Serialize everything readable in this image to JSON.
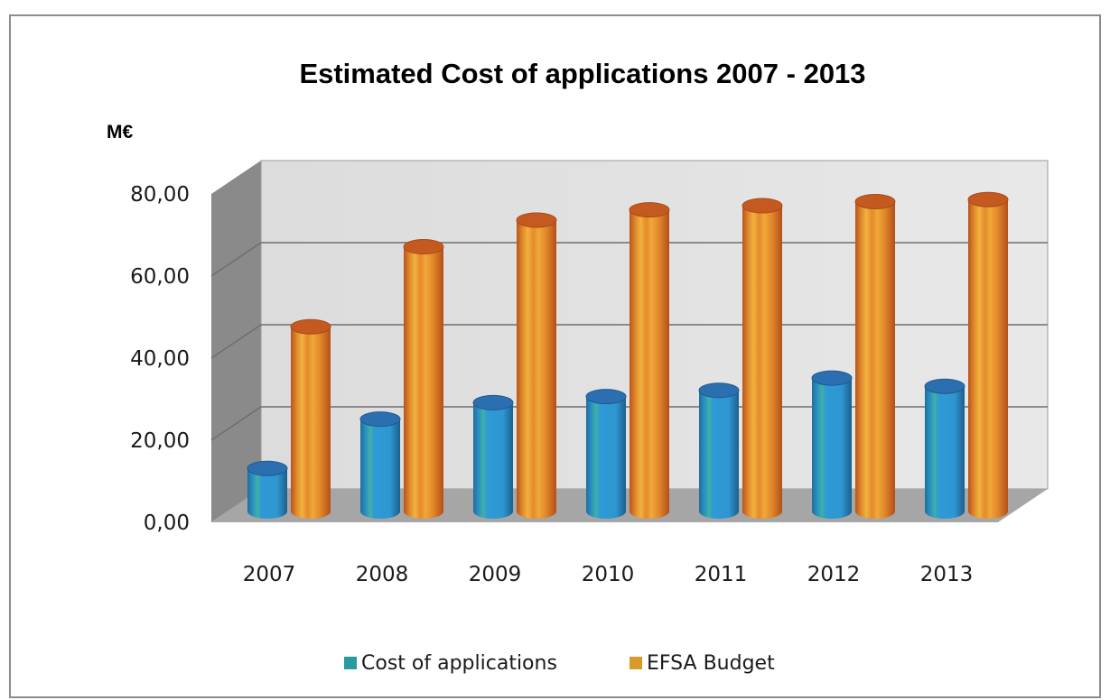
{
  "chart_data": {
    "type": "bar",
    "title": "Estimated Cost of applications 2007 - 2013",
    "ylabel": "M€",
    "xlabel": "",
    "categories": [
      "2007",
      "2008",
      "2009",
      "2010",
      "2011",
      "2012",
      "2013"
    ],
    "series": [
      {
        "name": "Cost of applications",
        "values": [
          10.5,
          22.5,
          26.5,
          28.0,
          29.5,
          32.5,
          30.5
        ],
        "color": "#2e9ad6"
      },
      {
        "name": "EFSA Budget",
        "values": [
          45.0,
          64.5,
          71.0,
          73.5,
          74.5,
          75.5,
          76.0
        ],
        "color": "#e0852a"
      }
    ],
    "ylim": [
      0,
      80
    ],
    "yticks": [
      "0,00",
      "20,00",
      "40,00",
      "60,00",
      "80,00"
    ],
    "grid": true,
    "legend": "bottom",
    "style": "3d-cylinder"
  }
}
